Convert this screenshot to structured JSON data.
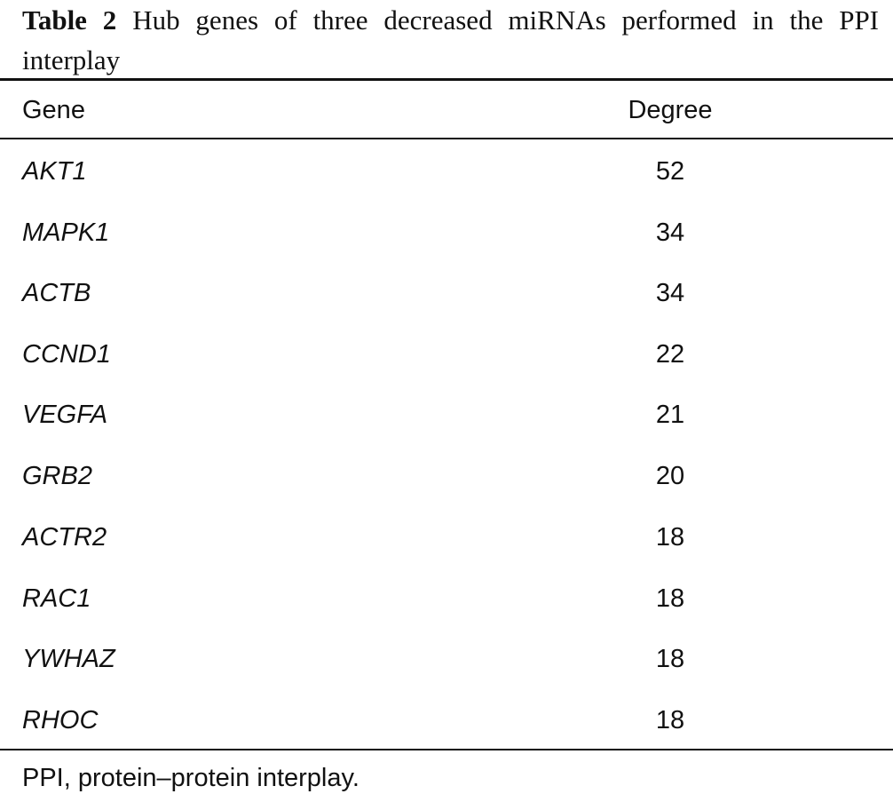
{
  "caption": {
    "label": "Table 2",
    "text": "Hub genes of three decreased miRNAs performed in the PPI interplay"
  },
  "table": {
    "headers": {
      "gene": "Gene",
      "degree": "Degree"
    },
    "rows": [
      {
        "gene": "AKT1",
        "degree": "52"
      },
      {
        "gene": "MAPK1",
        "degree": "34"
      },
      {
        "gene": "ACTB",
        "degree": "34"
      },
      {
        "gene": "CCND1",
        "degree": "22"
      },
      {
        "gene": "VEGFA",
        "degree": "21"
      },
      {
        "gene": "GRB2",
        "degree": "20"
      },
      {
        "gene": "ACTR2",
        "degree": "18"
      },
      {
        "gene": "RAC1",
        "degree": "18"
      },
      {
        "gene": "YWHAZ",
        "degree": "18"
      },
      {
        "gene": "RHOC",
        "degree": "18"
      }
    ]
  },
  "footnote": "PPI, protein–protein interplay."
}
